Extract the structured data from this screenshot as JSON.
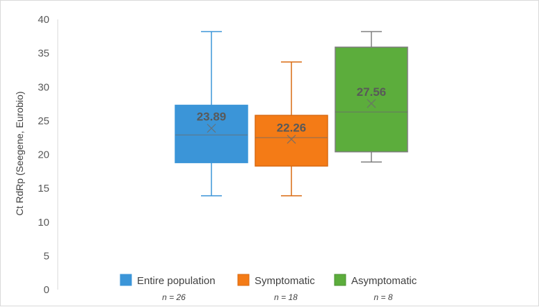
{
  "chart_data": {
    "type": "box",
    "ylabel": "Ct RdRp (Seegene, Eurobio)",
    "ylim": [
      0,
      40
    ],
    "yticks": [
      0,
      5,
      10,
      15,
      20,
      25,
      30,
      35,
      40
    ],
    "series": [
      {
        "name": "Entire population",
        "n_label": "n = 26",
        "color": "#3b95d8",
        "whisker_color": "#3b95d8",
        "min": 13.9,
        "q1": 18.8,
        "median": 22.9,
        "q3": 27.3,
        "max": 38.2,
        "mean": 23.89,
        "mean_label": "23.89"
      },
      {
        "name": "Symptomatic",
        "n_label": "n = 18",
        "color": "#f47b16",
        "whisker_color": "#d96a10",
        "min": 13.9,
        "q1": 18.3,
        "median": 22.5,
        "q3": 25.8,
        "max": 33.7,
        "mean": 22.26,
        "mean_label": "22.26"
      },
      {
        "name": "Asymptomatic",
        "n_label": "n = 8",
        "color": "#5cad3c",
        "whisker_color": "#7f7f7f",
        "min": 18.9,
        "q1": 20.4,
        "median": 26.3,
        "q3": 35.9,
        "max": 38.2,
        "mean": 27.56,
        "mean_label": "27.56"
      }
    ],
    "legend": "bottom",
    "grid": false
  }
}
